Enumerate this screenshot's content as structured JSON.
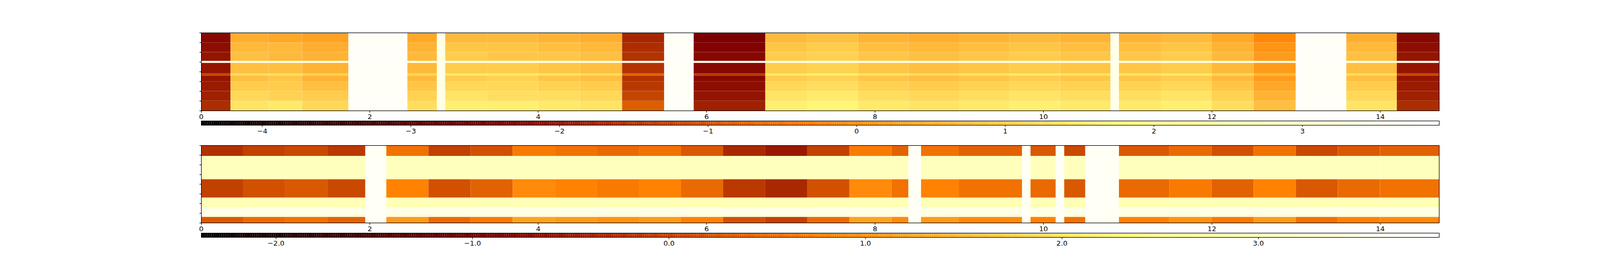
{
  "chart_data": [
    {
      "type": "heatmap",
      "xlim": [
        0,
        14.7
      ],
      "xticks": [
        0,
        2,
        4,
        6,
        8,
        10,
        12,
        14
      ],
      "ylim": [
        0,
        8
      ],
      "yticks": [
        0,
        1,
        2,
        3,
        4,
        5,
        6,
        7,
        8
      ],
      "tick_labels": "x",
      "x_edges": [
        0,
        0.35,
        0.8,
        1.2,
        1.75,
        2.45,
        2.8,
        2.9,
        3.4,
        4.0,
        4.5,
        5.0,
        5.5,
        5.85,
        6.7,
        7.2,
        7.8,
        8.4,
        9.0,
        9.6,
        10.2,
        10.8,
        10.9,
        11.4,
        12.0,
        12.5,
        13.0,
        13.6,
        14.2,
        14.7
      ],
      "y_edges": [
        0,
        1,
        2,
        3,
        3.6,
        3.8,
        4.9,
        5.1,
        6,
        7,
        8
      ],
      "cells": [
        [
          -1.6,
          -1.8,
          -1.9,
          -2.0,
          -1.2,
          -2.0,
          3.6,
          -2.0,
          -2.1,
          -2.2
        ],
        [
          1.4,
          1.2,
          1.0,
          0.8,
          1.3,
          0.8,
          3.6,
          0.8,
          0.7,
          0.5
        ],
        [
          1.5,
          1.1,
          1.0,
          0.9,
          1.3,
          0.8,
          3.6,
          0.7,
          0.7,
          0.4
        ],
        [
          1.2,
          1.0,
          0.8,
          0.6,
          1.1,
          0.6,
          3.6,
          0.6,
          0.5,
          0.3
        ],
        [
          3.8,
          3.8,
          3.8,
          3.8,
          3.8,
          3.8,
          3.8,
          3.8,
          3.8,
          3.8
        ],
        [
          1.3,
          1.1,
          0.9,
          0.7,
          1.2,
          0.7,
          3.6,
          0.7,
          0.6,
          0.4
        ],
        [
          3.5,
          3.5,
          3.5,
          3.5,
          3.5,
          3.5,
          3.5,
          3.5,
          3.5,
          3.5
        ],
        [
          1.6,
          1.4,
          1.2,
          1.0,
          1.5,
          1.0,
          3.6,
          1.0,
          0.9,
          0.7
        ],
        [
          1.6,
          1.3,
          1.2,
          1.1,
          1.5,
          1.0,
          3.6,
          0.9,
          0.9,
          0.7
        ],
        [
          1.5,
          1.3,
          1.1,
          0.9,
          1.4,
          0.9,
          3.6,
          0.9,
          0.8,
          0.6
        ],
        [
          1.4,
          1.2,
          1.0,
          0.8,
          1.3,
          0.8,
          3.6,
          0.8,
          0.7,
          0.5
        ],
        [
          -0.8,
          -1.2,
          -1.4,
          -1.5,
          -0.7,
          -1.5,
          3.6,
          -1.5,
          -1.6,
          -1.7
        ],
        [
          3.8,
          3.8,
          3.8,
          3.8,
          3.8,
          3.8,
          3.8,
          3.8,
          3.8,
          3.8
        ],
        [
          -1.8,
          -2.0,
          -2.1,
          -2.2,
          -1.4,
          -2.2,
          3.6,
          -2.2,
          -2.3,
          -2.4
        ],
        [
          1.6,
          1.4,
          1.2,
          1.0,
          1.5,
          1.0,
          3.6,
          1.0,
          0.9,
          0.7
        ],
        [
          1.7,
          1.5,
          1.3,
          1.1,
          1.6,
          1.1,
          3.6,
          1.1,
          1.0,
          0.8
        ],
        [
          1.5,
          1.3,
          1.1,
          0.9,
          1.4,
          0.9,
          3.6,
          0.9,
          0.8,
          0.6
        ],
        [
          1.4,
          1.2,
          1.0,
          0.8,
          1.3,
          0.8,
          3.6,
          0.8,
          0.7,
          0.5
        ],
        [
          1.5,
          1.3,
          1.1,
          0.9,
          1.4,
          0.9,
          3.6,
          0.9,
          0.8,
          0.6
        ],
        [
          1.6,
          1.4,
          1.2,
          1.0,
          1.5,
          1.0,
          3.6,
          1.0,
          0.9,
          0.7
        ],
        [
          1.5,
          1.3,
          1.1,
          0.9,
          1.4,
          0.9,
          3.6,
          0.9,
          0.8,
          0.6
        ],
        [
          3.6,
          3.6,
          3.6,
          3.6,
          3.6,
          3.6,
          3.6,
          3.6,
          3.6,
          3.6
        ],
        [
          1.5,
          1.3,
          1.1,
          0.9,
          1.4,
          0.9,
          3.6,
          0.9,
          0.8,
          0.6
        ],
        [
          1.6,
          1.4,
          1.2,
          1.0,
          1.5,
          1.0,
          3.6,
          1.0,
          0.9,
          0.7
        ],
        [
          1.3,
          1.1,
          0.9,
          0.7,
          1.2,
          0.7,
          3.6,
          0.7,
          0.6,
          0.4
        ],
        [
          0.8,
          0.6,
          0.4,
          0.2,
          0.7,
          0.2,
          3.6,
          0.2,
          0.1,
          -0.1
        ],
        [
          3.8,
          3.8,
          3.8,
          3.8,
          3.8,
          3.8,
          3.8,
          3.8,
          3.8,
          3.8
        ],
        [
          1.4,
          1.2,
          1.0,
          0.8,
          1.3,
          0.8,
          3.6,
          0.8,
          0.7,
          0.5
        ],
        [
          -1.6,
          -1.8,
          -1.9,
          -2.0,
          -1.2,
          -2.0,
          3.6,
          -2.0,
          -2.1,
          -2.2
        ]
      ],
      "colorbar_range": [
        -4.41,
        3.92
      ],
      "colorbar_ticks": [
        -4,
        -3,
        -2,
        -1,
        0,
        1,
        2,
        3
      ]
    },
    {
      "type": "heatmap",
      "xlim": [
        0,
        14.7
      ],
      "xticks": [
        0,
        2,
        4,
        6,
        8,
        10,
        12,
        14
      ],
      "ylim": [
        0,
        8
      ],
      "yticks": [
        0,
        1,
        2,
        3,
        4,
        5,
        6,
        7,
        8
      ],
      "tick_labels": "x",
      "x_edges": [
        0,
        0.5,
        1.0,
        1.5,
        1.95,
        2.2,
        2.7,
        3.2,
        3.7,
        4.2,
        4.7,
        5.2,
        5.7,
        6.2,
        6.7,
        7.2,
        7.7,
        8.2,
        8.4,
        8.55,
        9.0,
        9.75,
        9.85,
        10.15,
        10.25,
        10.5,
        10.9,
        11.5,
        12.0,
        12.5,
        13.0,
        13.5,
        14.0,
        14.7
      ],
      "y_edges": [
        0,
        0.6,
        1.6,
        2.6,
        4.5,
        6.9,
        8
      ],
      "cells": [
        [
          0.3,
          3.6,
          3.0,
          0.0,
          3.1,
          -0.2
        ],
        [
          0.5,
          3.6,
          3.0,
          0.2,
          3.1,
          0.0
        ],
        [
          0.6,
          3.6,
          3.0,
          0.3,
          3.1,
          0.1
        ],
        [
          0.4,
          3.6,
          3.0,
          0.1,
          3.1,
          -0.1
        ],
        [
          3.8,
          3.8,
          3.8,
          3.8,
          3.8,
          3.8
        ],
        [
          1.1,
          3.6,
          3.0,
          0.8,
          3.1,
          0.6
        ],
        [
          0.5,
          3.6,
          3.0,
          0.2,
          3.1,
          0.0
        ],
        [
          0.7,
          3.6,
          3.0,
          0.4,
          3.1,
          0.2
        ],
        [
          1.2,
          3.6,
          3.0,
          0.9,
          3.1,
          0.7
        ],
        [
          1.1,
          3.6,
          3.0,
          0.8,
          3.1,
          0.6
        ],
        [
          1.0,
          3.6,
          3.0,
          0.7,
          3.1,
          0.5
        ],
        [
          1.1,
          3.6,
          3.0,
          0.8,
          3.1,
          0.6
        ],
        [
          0.8,
          3.6,
          3.0,
          0.5,
          3.1,
          0.3
        ],
        [
          0.2,
          3.6,
          3.0,
          -0.1,
          3.1,
          -0.3
        ],
        [
          0.0,
          3.6,
          3.0,
          -0.3,
          3.1,
          -0.5
        ],
        [
          0.5,
          3.6,
          3.0,
          0.2,
          3.1,
          0.0
        ],
        [
          1.2,
          3.6,
          3.0,
          0.9,
          3.1,
          0.7
        ],
        [
          0.9,
          3.6,
          3.0,
          0.6,
          3.1,
          0.4
        ],
        [
          3.8,
          3.8,
          3.8,
          3.8,
          3.8,
          3.8
        ],
        [
          1.1,
          3.6,
          3.0,
          0.8,
          3.1,
          0.6
        ],
        [
          0.9,
          3.6,
          3.0,
          0.6,
          3.1,
          0.4
        ],
        [
          3.8,
          3.8,
          3.8,
          3.8,
          3.8,
          3.8
        ],
        [
          0.8,
          3.6,
          3.0,
          0.5,
          3.1,
          0.3
        ],
        [
          3.8,
          3.8,
          3.8,
          3.8,
          3.8,
          3.8
        ],
        [
          0.6,
          3.6,
          3.0,
          0.3,
          3.1,
          0.1
        ],
        [
          3.8,
          3.8,
          3.8,
          3.8,
          3.8,
          3.8
        ],
        [
          0.8,
          3.6,
          3.0,
          0.5,
          3.1,
          0.3
        ],
        [
          1.0,
          3.6,
          3.0,
          0.7,
          3.1,
          0.5
        ],
        [
          0.7,
          3.6,
          3.0,
          0.4,
          3.1,
          0.2
        ],
        [
          1.1,
          3.6,
          3.0,
          0.8,
          3.1,
          0.6
        ],
        [
          0.6,
          3.6,
          3.0,
          0.3,
          3.1,
          0.1
        ],
        [
          0.8,
          3.6,
          3.0,
          0.5,
          3.1,
          0.3
        ],
        [
          0.9,
          3.6,
          3.0,
          0.6,
          3.1,
          0.4
        ]
      ],
      "colorbar_range": [
        -2.38,
        3.92
      ],
      "colorbar_ticks": [
        -2,
        -1,
        0,
        1,
        2,
        3
      ]
    }
  ]
}
